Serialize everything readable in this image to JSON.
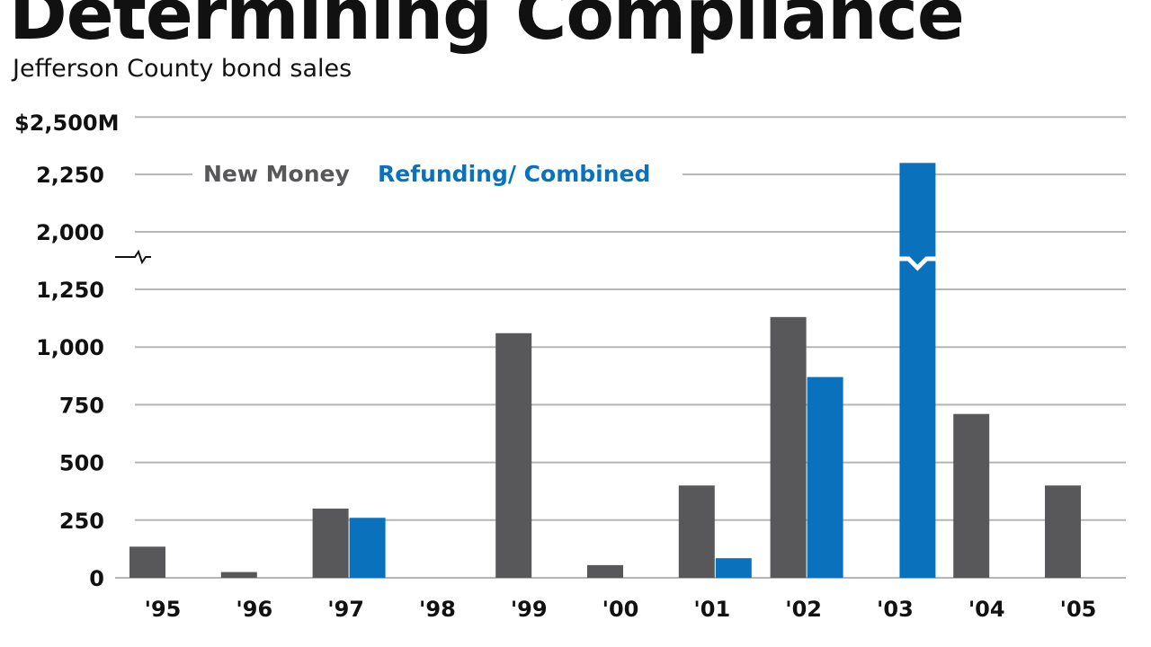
{
  "header": {
    "title": "Determining Compliance",
    "subtitle": "Jefferson County bond sales"
  },
  "colors": {
    "new_money": "#58585a",
    "refunding": "#0a72bc",
    "grid": "#b5b5b5",
    "text": "#111111"
  },
  "chart_data": {
    "type": "bar",
    "title": "Determining Compliance",
    "subtitle": "Jefferson County bond sales",
    "xlabel": "",
    "ylabel": "",
    "units": "$M",
    "categories": [
      "'95",
      "'96",
      "'97",
      "'98",
      "'99",
      "'00",
      "'01",
      "'02",
      "'03",
      "'04",
      "'05"
    ],
    "series": [
      {
        "name": "New Money",
        "color": "#58585a",
        "values": [
          135,
          25,
          300,
          0,
          1060,
          55,
          400,
          1130,
          0,
          710,
          400
        ]
      },
      {
        "name": "Refunding/ Combined",
        "color": "#0a72bc",
        "values": [
          0,
          0,
          260,
          0,
          0,
          0,
          85,
          870,
          2300,
          0,
          0
        ]
      }
    ],
    "yticks": [
      {
        "value": 0,
        "label": "0"
      },
      {
        "value": 250,
        "label": "250"
      },
      {
        "value": 500,
        "label": "500"
      },
      {
        "value": 750,
        "label": "750"
      },
      {
        "value": 1000,
        "label": "1,000"
      },
      {
        "value": 1250,
        "label": "1,250"
      },
      {
        "value": 2000,
        "label": "2,000"
      },
      {
        "value": 2250,
        "label": "2,250"
      },
      {
        "value": 2500,
        "label": "$2,500M"
      }
    ],
    "axis_break": [
      1250,
      2000
    ],
    "ylim": [
      0,
      2500
    ],
    "grid": true,
    "legend_position": "top-left"
  }
}
